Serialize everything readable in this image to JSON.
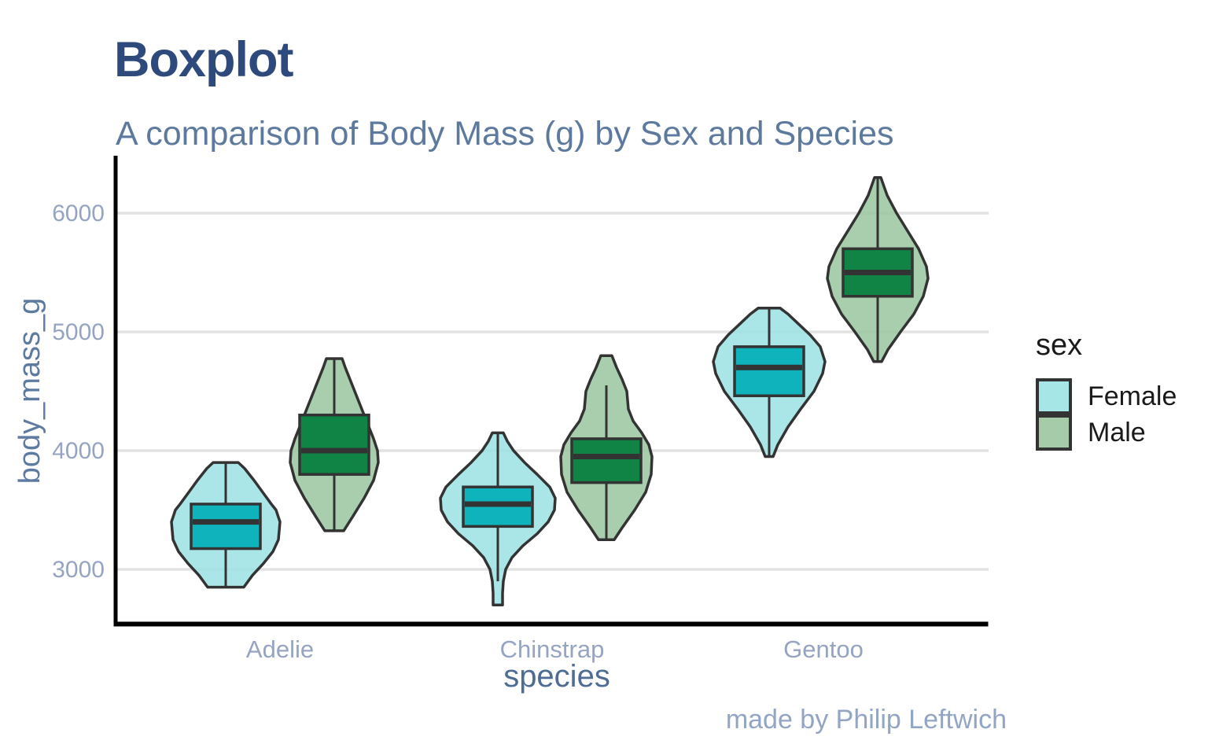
{
  "chart_data": {
    "type": "violin_boxplot",
    "title": "Boxplot",
    "subtitle": "A comparison of Body Mass (g) by Sex and Species",
    "caption": "made by Philip Leftwich",
    "xlabel": "species",
    "ylabel": "body_mass_g",
    "categories": [
      "Adelie",
      "Chinstrap",
      "Gentoo"
    ],
    "y_ticks": [
      "6000",
      "5000",
      "4000",
      "3000"
    ],
    "y_tick_values": [
      6000,
      5000,
      4000,
      3000
    ],
    "ylim": [
      2520,
      6470
    ],
    "grid": "horizontal-gridlines-only",
    "legend": {
      "title": "sex",
      "position": "right",
      "entries": [
        {
          "label": "Female",
          "color": "#a6e6e7"
        },
        {
          "label": "Male",
          "color": "#a6cba9"
        }
      ]
    },
    "colors": {
      "female_violin": "#9be2e3",
      "female_box": "#0fb3bc",
      "male_violin": "#9ac5a0",
      "male_box": "#0f8444",
      "outline": "#333333",
      "gridline": "#e2e2e2",
      "axis": "#000000",
      "title_text": "#2e4a7c",
      "subtitle_text": "#5d7a9e",
      "tick_text": "#94a4c2"
    },
    "series": [
      {
        "species": "Adelie",
        "sex": "Female",
        "whisker_low": 2850,
        "q1": 3175,
        "median": 3400,
        "q3": 3550,
        "whisker_high": 3900,
        "violin_range": [
          2850,
          3900
        ],
        "violin_profile": [
          [
            2850,
            23
          ],
          [
            2950,
            34
          ],
          [
            3050,
            48
          ],
          [
            3150,
            60
          ],
          [
            3250,
            67
          ],
          [
            3400,
            69
          ],
          [
            3500,
            64
          ],
          [
            3550,
            58
          ],
          [
            3650,
            47
          ],
          [
            3750,
            36
          ],
          [
            3850,
            24
          ],
          [
            3900,
            16
          ]
        ]
      },
      {
        "species": "Adelie",
        "sex": "Male",
        "whisker_low": 3325,
        "q1": 3800,
        "median": 4000,
        "q3": 4300,
        "whisker_high": 4775,
        "violin_range": [
          3325,
          4775
        ],
        "violin_profile": [
          [
            3325,
            12
          ],
          [
            3450,
            24
          ],
          [
            3600,
            38
          ],
          [
            3750,
            50
          ],
          [
            3900,
            56
          ],
          [
            4000,
            55
          ],
          [
            4100,
            50
          ],
          [
            4200,
            44
          ],
          [
            4300,
            38
          ],
          [
            4450,
            29
          ],
          [
            4600,
            20
          ],
          [
            4700,
            14
          ],
          [
            4775,
            10
          ]
        ]
      },
      {
        "species": "Chinstrap",
        "sex": "Female",
        "whisker_low": 2900,
        "q1": 3362,
        "median": 3550,
        "q3": 3694,
        "whisker_high": 4150,
        "violin_range": [
          2700,
          4150
        ],
        "violin_profile": [
          [
            2700,
            6
          ],
          [
            2800,
            6
          ],
          [
            2900,
            7
          ],
          [
            3000,
            10
          ],
          [
            3100,
            18
          ],
          [
            3200,
            32
          ],
          [
            3300,
            50
          ],
          [
            3400,
            64
          ],
          [
            3500,
            72
          ],
          [
            3600,
            73
          ],
          [
            3694,
            66
          ],
          [
            3800,
            50
          ],
          [
            3900,
            34
          ],
          [
            4000,
            20
          ],
          [
            4080,
            12
          ],
          [
            4150,
            7
          ]
        ]
      },
      {
        "species": "Chinstrap",
        "sex": "Male",
        "whisker_low": 3250,
        "q1": 3731,
        "median": 3950,
        "q3": 4100,
        "whisker_high": 4550,
        "violin_range": [
          3250,
          4800
        ],
        "violin_profile": [
          [
            3250,
            10
          ],
          [
            3350,
            20
          ],
          [
            3500,
            36
          ],
          [
            3650,
            50
          ],
          [
            3800,
            57
          ],
          [
            3950,
            58
          ],
          [
            4050,
            54
          ],
          [
            4150,
            45
          ],
          [
            4250,
            34
          ],
          [
            4350,
            28
          ],
          [
            4500,
            26
          ],
          [
            4600,
            20
          ],
          [
            4700,
            13
          ],
          [
            4800,
            7
          ]
        ]
      },
      {
        "species": "Gentoo",
        "sex": "Female",
        "whisker_low": 3950,
        "q1": 4462,
        "median": 4700,
        "q3": 4875,
        "whisker_high": 5200,
        "violin_range": [
          3950,
          5200
        ],
        "violin_profile": [
          [
            3950,
            5
          ],
          [
            4050,
            11
          ],
          [
            4200,
            24
          ],
          [
            4350,
            40
          ],
          [
            4500,
            57
          ],
          [
            4650,
            68
          ],
          [
            4750,
            71
          ],
          [
            4875,
            65
          ],
          [
            4975,
            52
          ],
          [
            5075,
            36
          ],
          [
            5150,
            24
          ],
          [
            5200,
            14
          ]
        ]
      },
      {
        "species": "Gentoo",
        "sex": "Male",
        "whisker_low": 4750,
        "q1": 5300,
        "median": 5500,
        "q3": 5700,
        "whisker_high": 6300,
        "violin_range": [
          4750,
          6300
        ],
        "violin_profile": [
          [
            4750,
            5
          ],
          [
            4850,
            13
          ],
          [
            5000,
            29
          ],
          [
            5150,
            46
          ],
          [
            5300,
            58
          ],
          [
            5450,
            64
          ],
          [
            5550,
            62
          ],
          [
            5700,
            52
          ],
          [
            5850,
            38
          ],
          [
            6000,
            24
          ],
          [
            6150,
            12
          ],
          [
            6300,
            4
          ]
        ]
      }
    ]
  }
}
